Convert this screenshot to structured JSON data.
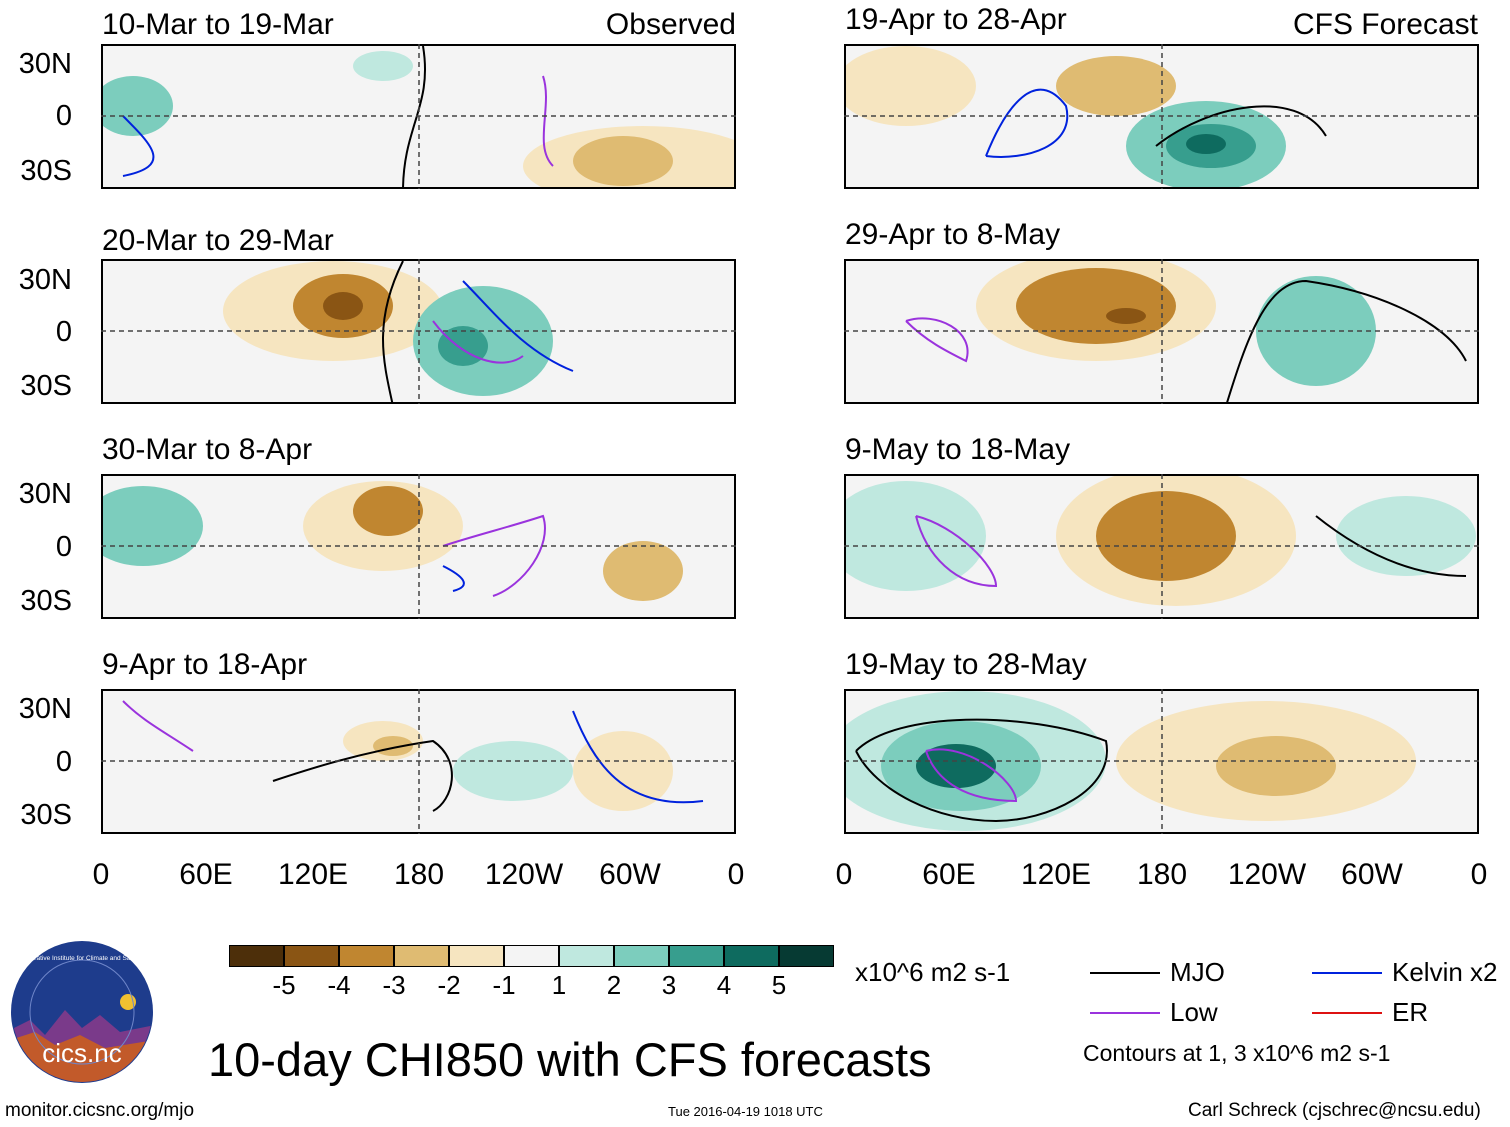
{
  "observed_label": "Observed",
  "forecast_label": "CFS Forecast",
  "panels_left": [
    {
      "date": "10-Mar to 19-Mar"
    },
    {
      "date": "20-Mar to 29-Mar"
    },
    {
      "date": "30-Mar to 8-Apr"
    },
    {
      "date": "9-Apr to 18-Apr"
    }
  ],
  "panels_right": [
    {
      "date": "19-Apr to 28-Apr"
    },
    {
      "date": "29-Apr to 8-May"
    },
    {
      "date": "9-May to 18-May"
    },
    {
      "date": "19-May to 28-May"
    }
  ],
  "lat_labels": [
    "30N",
    "0",
    "30S"
  ],
  "lon_labels": [
    "0",
    "60E",
    "120E",
    "180",
    "120W",
    "60W",
    "0"
  ],
  "colorbar": {
    "ticks": [
      "-5",
      "-4",
      "-3",
      "-2",
      "-1",
      "1",
      "2",
      "3",
      "4",
      "5"
    ],
    "colors": [
      "#4d2f0a",
      "#8a5514",
      "#c08630",
      "#dfbb72",
      "#f6e5c0",
      "#f4f4f4",
      "#bfe8df",
      "#7ccdbd",
      "#379e8e",
      "#0e6b5f",
      "#063a33"
    ],
    "units": "x10^6 m2 s-1"
  },
  "legend": {
    "mjo": {
      "label": "MJO",
      "color": "#000000"
    },
    "kelvin": {
      "label": "Kelvin x2",
      "color": "#0022dd"
    },
    "low": {
      "label": "Low",
      "color": "#9a33dd"
    },
    "er": {
      "label": "ER",
      "color": "#dd1111"
    },
    "contours_note": "Contours at 1, 3 x10^6 m2 s-1"
  },
  "logo_text": "cics.nc",
  "logo_ring_text": "Cooperative Institute for Climate and Satellites",
  "main_title": "10-day CHI850 with CFS forecasts",
  "footer_left": "monitor.cicsnc.org/mjo",
  "footer_center": "Tue 2016-04-19 1018 UTC",
  "footer_right": "Carl Schreck (cjschrec@ncsu.edu)"
}
